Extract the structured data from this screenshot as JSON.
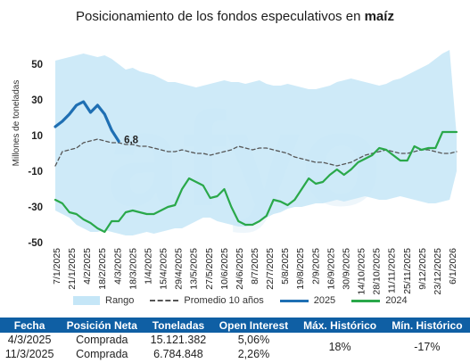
{
  "title": {
    "text": "Posicionamiento de los fondos especulativos en ",
    "bold": "maíz"
  },
  "chart_data": {
    "type": "line",
    "ylabel": "Millones de toneladas",
    "ylim": [
      -50,
      60
    ],
    "yticks": [
      "50",
      "30",
      "10",
      "-10",
      "-30",
      "-50"
    ],
    "ytick_values": [
      50,
      30,
      10,
      -10,
      -30,
      -50
    ],
    "x_labels": [
      "7/1/2025",
      "21/1/2025",
      "4/2/2025",
      "18/2/2025",
      "4/3/2025",
      "18/3/2025",
      "1/4/2025",
      "15/4/2025",
      "29/4/2025",
      "13/5/2025",
      "27/5/2025",
      "10/6/2025",
      "24/6/2025",
      "8/7/2025",
      "22/7/2025",
      "5/8/2025",
      "19/8/2025",
      "2/9/2025",
      "16/9/2025",
      "30/9/2025",
      "14/10/2025",
      "28/10/2025",
      "11/11/2025",
      "25/11/2025",
      "9/12/2025",
      "23/12/2025",
      "6/1/2026"
    ],
    "range_upper": [
      52,
      53,
      54,
      55,
      56,
      55,
      54,
      55,
      53,
      50,
      47,
      48,
      46,
      45,
      44,
      42,
      40,
      40,
      39,
      38,
      37,
      38,
      39,
      40,
      41,
      40,
      40,
      39,
      40,
      41,
      39,
      38,
      38,
      39,
      38,
      37,
      36,
      36,
      37,
      38,
      40,
      41,
      42,
      41,
      40,
      39,
      38,
      39,
      41,
      42,
      44,
      46,
      48,
      50,
      53,
      56,
      58,
      10
    ],
    "range_lower": [
      -32,
      -34,
      -36,
      -40,
      -42,
      -44,
      -44,
      -43,
      -44,
      -45,
      -46,
      -46,
      -45,
      -44,
      -45,
      -44,
      -43,
      -42,
      -42,
      -40,
      -38,
      -36,
      -36,
      -38,
      -39,
      -40,
      -41,
      -41,
      -40,
      -38,
      -36,
      -34,
      -33,
      -31,
      -30,
      -30,
      -29,
      -28,
      -28,
      -27,
      -26,
      -27,
      -26,
      -25,
      -24,
      -25,
      -26,
      -26,
      -25,
      -24,
      -25,
      -26,
      -27,
      -28,
      -28,
      -27,
      -26,
      -10
    ],
    "series": [
      {
        "name": "Promedio 10 años",
        "values": [
          -7,
          1,
          2,
          3,
          6,
          7,
          8,
          7,
          6,
          6,
          5,
          5,
          4,
          4,
          3,
          2,
          1,
          1,
          2,
          1,
          0,
          0,
          -1,
          0,
          1,
          2,
          4,
          3,
          2,
          3,
          3,
          2,
          1,
          0,
          -2,
          -3,
          -4,
          -5,
          -5,
          -6,
          -7,
          -6,
          -5,
          -3,
          -1,
          0,
          1,
          2,
          1,
          0,
          0,
          1,
          2,
          2,
          1,
          0,
          0,
          1
        ]
      },
      {
        "name": "2025",
        "values": [
          15,
          18,
          22,
          27,
          29,
          23,
          27,
          22,
          13,
          6.8
        ]
      },
      {
        "name": "2024",
        "values": [
          -26,
          -28,
          -33,
          -34,
          -37,
          -39,
          -42,
          -44,
          -38,
          -38,
          -33,
          -32,
          -33,
          -34,
          -34,
          -32,
          -30,
          -29,
          -20,
          -14,
          -16,
          -18,
          -25,
          -24,
          -20,
          -30,
          -38,
          -40,
          -40,
          -38,
          -35,
          -26,
          -27,
          -29,
          -26,
          -20,
          -14,
          -17,
          -16,
          -12,
          -9,
          -12,
          -9,
          -5,
          -3,
          -1,
          3,
          2,
          -1,
          -4,
          -4,
          4,
          2,
          3,
          3,
          12,
          12,
          12
        ]
      }
    ],
    "annotation": "6,8",
    "grid": false
  },
  "legend": {
    "range_label": "Rango",
    "avg_label": "Promedio 10 años",
    "s2025_label": "2025",
    "s2024_label": "2024"
  },
  "colors": {
    "range": "#c5e6f7",
    "avg": "#555555",
    "s2025": "#1f6fb3",
    "s2024": "#2aa84a",
    "header": "#0f5fa4"
  },
  "table": {
    "headers": [
      "Fecha",
      "Posición Neta",
      "Toneladas",
      "Open Interest",
      "Máx. Histórico",
      "Mín. Histórico"
    ],
    "rows": [
      [
        "4/3/2025",
        "Comprada",
        "15.121.382",
        "5,06%"
      ],
      [
        "11/3/2025",
        "Comprada",
        "6.784.848",
        "2,26%"
      ]
    ],
    "max_hist": "18%",
    "min_hist": "-17%"
  }
}
